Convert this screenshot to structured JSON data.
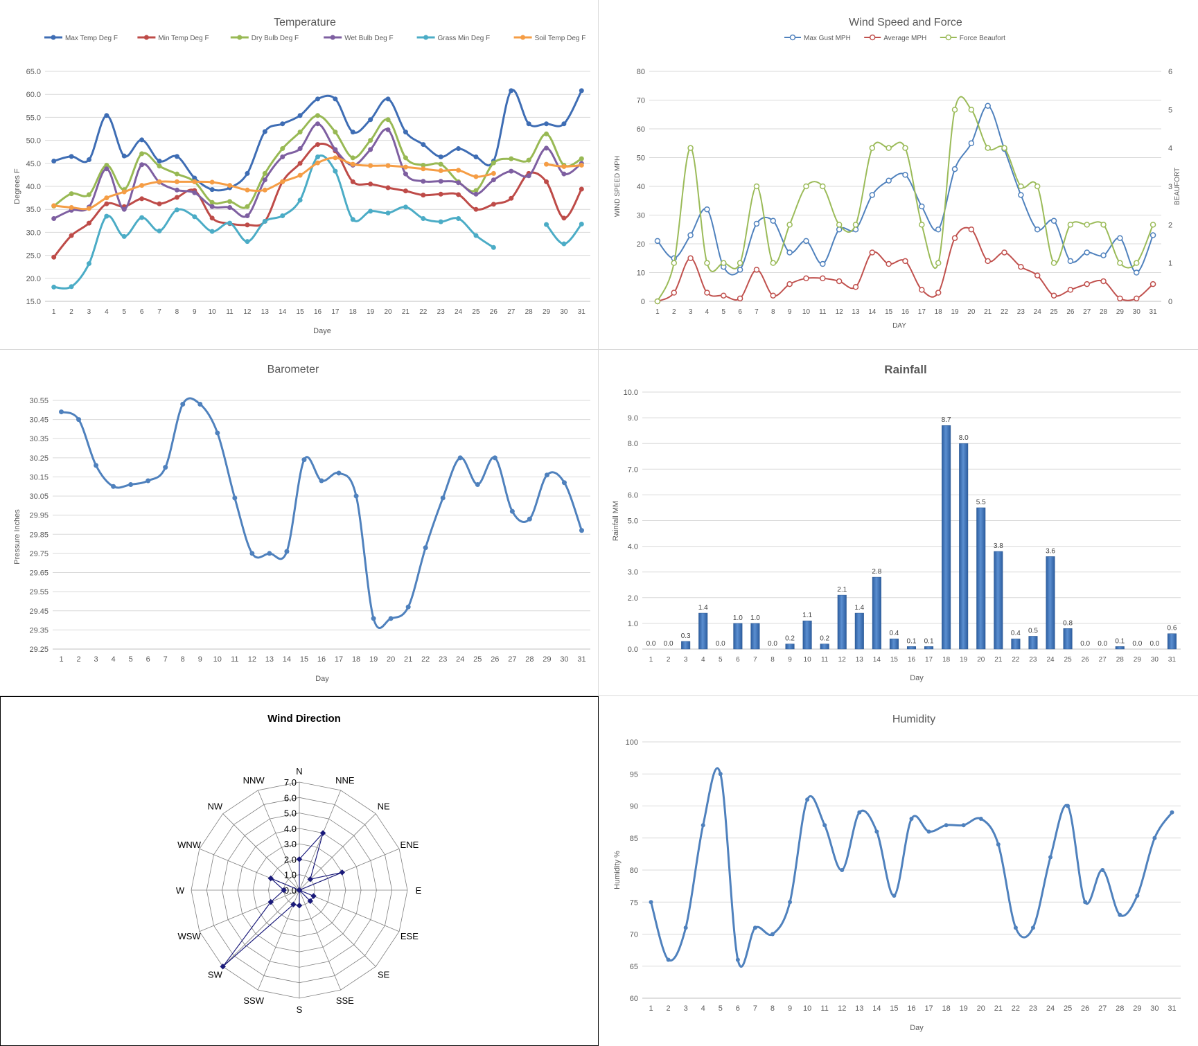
{
  "chart_data": [
    {
      "id": "temperature",
      "type": "line",
      "title": "Temperature",
      "xlabel": "Daye",
      "ylabel": "Degrees F",
      "ylim": [
        15,
        65
      ],
      "yticks": [
        "15.0",
        "20.0",
        "25.0",
        "30.0",
        "35.0",
        "40.0",
        "45.0",
        "50.0",
        "55.0",
        "60.0",
        "65.0"
      ],
      "x": [
        1,
        2,
        3,
        4,
        5,
        6,
        7,
        8,
        9,
        10,
        11,
        12,
        13,
        14,
        15,
        16,
        17,
        18,
        19,
        20,
        21,
        22,
        23,
        24,
        25,
        26,
        27,
        28,
        29,
        30,
        31
      ],
      "legend": "top",
      "grid": true,
      "series": [
        {
          "name": "Max Temp Deg F",
          "color": "#3e6db4",
          "values": [
            45.5,
            46.5,
            45.8,
            55.4,
            46.6,
            50.1,
            45.5,
            46.5,
            41.8,
            39.3,
            39.7,
            42.8,
            51.9,
            53.6,
            55.4,
            59,
            59,
            51.8,
            54.5,
            59,
            51.8,
            49.1,
            46.4,
            48.2,
            46.4,
            45.5,
            60.8,
            53.6,
            53.6,
            53.6,
            60.8
          ]
        },
        {
          "name": "Min Temp Deg F",
          "color": "#be4b48",
          "values": [
            24.6,
            29.3,
            32,
            36.2,
            35.6,
            37.3,
            36.2,
            37.6,
            39.1,
            33.1,
            31.9,
            31.6,
            32.4,
            41,
            45,
            49.1,
            47.7,
            41,
            40.5,
            39.7,
            39,
            38.1,
            38.3,
            38.2,
            35,
            36.1,
            37.4,
            42.8,
            41,
            33.1,
            39.4
          ]
        },
        {
          "name": "Dry Bulb Deg F",
          "color": "#98b954",
          "values": [
            35.7,
            38.4,
            38.2,
            44.6,
            39.3,
            47.1,
            44.4,
            42.7,
            41,
            36.5,
            36.7,
            35.6,
            42.8,
            48.2,
            51.8,
            55.4,
            51.8,
            46.2,
            50,
            54.5,
            46.2,
            44.6,
            44.8,
            41,
            39.1,
            45.1,
            46,
            45.7,
            51.4,
            44.6,
            46
          ]
        },
        {
          "name": "Wet Bulb Deg F",
          "color": "#7e5fa1",
          "values": [
            33,
            34.8,
            35.5,
            43.8,
            35,
            44.7,
            40.9,
            39.2,
            38.6,
            35.6,
            35.4,
            33.6,
            41.4,
            46.4,
            48.2,
            53.6,
            48,
            44.6,
            48,
            52.3,
            42.7,
            41.1,
            41.1,
            40.8,
            38.3,
            41.4,
            43.3,
            42.3,
            48.3,
            42.7,
            45
          ]
        },
        {
          "name": "Grass Min Deg F",
          "color": "#4bacc6",
          "values": [
            18.1,
            18.2,
            23.2,
            33.5,
            29.1,
            33.2,
            30.3,
            34.9,
            33.4,
            30.2,
            32,
            28,
            32.4,
            33.6,
            37,
            46.4,
            43.3,
            32.8,
            34.6,
            34.2,
            35.5,
            33,
            32.3,
            33,
            29.3,
            26.7,
            null,
            null,
            31.7,
            27.5,
            31.8
          ]
        },
        {
          "name": "Soil Temp Deg F",
          "color": "#f59d45",
          "values": [
            35.8,
            35.4,
            35.2,
            37.5,
            38.8,
            40.2,
            41,
            41,
            41,
            40.9,
            40.2,
            39.2,
            39.2,
            41,
            42.4,
            45.1,
            46.2,
            44.8,
            44.5,
            44.5,
            44.2,
            43.8,
            43.4,
            43.5,
            42.1,
            42.8,
            null,
            null,
            44.8,
            44.3,
            44.6
          ]
        }
      ]
    },
    {
      "id": "wind",
      "type": "line",
      "title": "Wind Speed and Force",
      "xlabel": "DAY",
      "ylabel": "WIND SPEED MPH",
      "y2label": "BEAUFORT",
      "ylim": [
        0,
        80
      ],
      "y2lim": [
        0,
        6
      ],
      "yticks": [
        "0",
        "10",
        "20",
        "30",
        "40",
        "50",
        "60",
        "70",
        "80"
      ],
      "y2ticks": [
        "0",
        "1",
        "2",
        "3",
        "4",
        "5",
        "6"
      ],
      "x": [
        1,
        2,
        3,
        4,
        5,
        6,
        7,
        8,
        9,
        10,
        11,
        12,
        13,
        14,
        15,
        16,
        17,
        18,
        19,
        20,
        21,
        22,
        23,
        24,
        25,
        26,
        27,
        28,
        29,
        30,
        31
      ],
      "legend": "top",
      "grid": true,
      "series": [
        {
          "name": "Max Gust MPH",
          "color": "#4f81bd",
          "axis": "left",
          "values": [
            21,
            15,
            23,
            32,
            12,
            11,
            27,
            28,
            17,
            21,
            13,
            25,
            25,
            37,
            42,
            44,
            33,
            25,
            46,
            55,
            68,
            53,
            37,
            25,
            28,
            14,
            17,
            16,
            22,
            10,
            23
          ]
        },
        {
          "name": "Average MPH",
          "color": "#c0504d",
          "axis": "left",
          "values": [
            0,
            3,
            15,
            3,
            2,
            1,
            11,
            2,
            6,
            8,
            8,
            7,
            5,
            17,
            13,
            14,
            4,
            3,
            22,
            25,
            14,
            17,
            12,
            9,
            2,
            4,
            6,
            7,
            1,
            1,
            6
          ]
        },
        {
          "name": "Force Beaufort",
          "color": "#9bbb59",
          "axis": "right",
          "values": [
            0,
            1,
            4,
            1,
            1,
            1,
            3,
            1,
            2,
            3,
            3,
            2,
            2,
            4,
            4,
            4,
            2,
            1,
            5,
            5,
            4,
            4,
            3,
            3,
            1,
            2,
            2,
            2,
            1,
            1,
            2
          ]
        }
      ]
    },
    {
      "id": "barometer",
      "type": "line",
      "title": "Barometer",
      "xlabel": "Day",
      "ylabel": "Pressure Inches",
      "ylim": [
        29.25,
        30.55
      ],
      "yticks": [
        "29.25",
        "29.35",
        "29.45",
        "29.55",
        "29.65",
        "29.75",
        "29.85",
        "29.95",
        "30.05",
        "30.15",
        "30.25",
        "30.35",
        "30.45",
        "30.55"
      ],
      "x": [
        1,
        2,
        3,
        4,
        5,
        6,
        7,
        8,
        9,
        10,
        11,
        12,
        13,
        14,
        15,
        16,
        17,
        18,
        19,
        20,
        21,
        22,
        23,
        24,
        25,
        26,
        27,
        28,
        29,
        30,
        31
      ],
      "grid": true,
      "series": [
        {
          "name": "",
          "color": "#4f81bd",
          "values": [
            30.49,
            30.45,
            30.21,
            30.1,
            30.11,
            30.13,
            30.2,
            30.53,
            30.53,
            30.38,
            30.04,
            29.75,
            29.75,
            29.76,
            30.24,
            30.13,
            30.17,
            30.05,
            29.41,
            29.41,
            29.47,
            29.78,
            30.04,
            30.25,
            30.11,
            30.25,
            29.97,
            29.93,
            30.16,
            30.12,
            29.87
          ]
        }
      ]
    },
    {
      "id": "rainfall",
      "type": "bar",
      "title": "Rainfall",
      "xlabel": "Day",
      "ylabel": "Rainfall MM",
      "ylim": [
        0,
        10
      ],
      "yticks": [
        "0.0",
        "1.0",
        "2.0",
        "3.0",
        "4.0",
        "5.0",
        "6.0",
        "7.0",
        "8.0",
        "9.0",
        "10.0"
      ],
      "categories": [
        "1",
        "2",
        "3",
        "4",
        "5",
        "6",
        "7",
        "8",
        "9",
        "10",
        "11",
        "12",
        "13",
        "14",
        "15",
        "16",
        "17",
        "18",
        "19",
        "20",
        "21",
        "22",
        "23",
        "24",
        "25",
        "26",
        "27",
        "28",
        "29",
        "30",
        "31"
      ],
      "values": [
        0,
        0,
        0.3,
        1.4,
        0,
        1,
        1,
        0,
        0.2,
        1.1,
        0.2,
        2.1,
        1.4,
        2.8,
        0.4,
        0.1,
        0.1,
        8.7,
        8,
        5.5,
        3.8,
        0.4,
        0.5,
        3.6,
        0.8,
        0,
        0,
        0.1,
        0,
        0,
        0.6
      ],
      "labels": [
        "0.0",
        "0.0",
        "0.3",
        "1.4",
        "0.0",
        "1.0",
        "1.0",
        "0.0",
        "0.2",
        "1.1",
        "0.2",
        "2.1",
        "1.4",
        "2.8",
        "0.4",
        "0.1",
        "0.1",
        "8.7",
        "8.0",
        "5.5",
        "3.8",
        "0.4",
        "0.5",
        "3.6",
        "0.8",
        "0.0",
        "0.0",
        "0.1",
        "0.0",
        "0.0",
        "0.6"
      ],
      "color": "#3b70b8",
      "grid": true
    },
    {
      "id": "wind_direction",
      "type": "radar",
      "title": "Wind Direction",
      "categories": [
        "N",
        "NNE",
        "NE",
        "ENE",
        "E",
        "ESE",
        "SE",
        "SSE",
        "S",
        "SSW",
        "SW",
        "WSW",
        "W",
        "WNW",
        "NW",
        "NNW"
      ],
      "values": [
        2,
        4,
        1,
        3,
        0,
        1,
        1,
        0,
        1,
        1,
        7,
        2,
        1,
        2,
        0,
        0
      ],
      "rticks": [
        "0.0",
        "1.0",
        "2.0",
        "3.0",
        "4.0",
        "5.0",
        "6.0",
        "7.0"
      ],
      "rlim": [
        0,
        7
      ],
      "color": "#1a1a7a"
    },
    {
      "id": "humidity",
      "type": "line",
      "title": "Humidity",
      "xlabel": "Day",
      "ylabel": "Humidity %",
      "ylim": [
        60,
        100
      ],
      "yticks": [
        "60",
        "65",
        "70",
        "75",
        "80",
        "85",
        "90",
        "95",
        "100"
      ],
      "x": [
        1,
        2,
        3,
        4,
        5,
        6,
        7,
        8,
        9,
        10,
        11,
        12,
        13,
        14,
        15,
        16,
        17,
        18,
        19,
        20,
        21,
        22,
        23,
        24,
        25,
        26,
        27,
        28,
        29,
        30,
        31
      ],
      "grid": true,
      "series": [
        {
          "name": "",
          "color": "#4f81bd",
          "values": [
            75,
            66,
            71,
            87,
            95,
            66,
            71,
            70,
            75,
            91,
            87,
            80,
            89,
            86,
            76,
            88,
            86,
            87,
            87,
            88,
            84,
            71,
            71,
            82,
            90,
            75,
            80,
            73,
            76,
            85,
            89
          ]
        }
      ]
    }
  ]
}
